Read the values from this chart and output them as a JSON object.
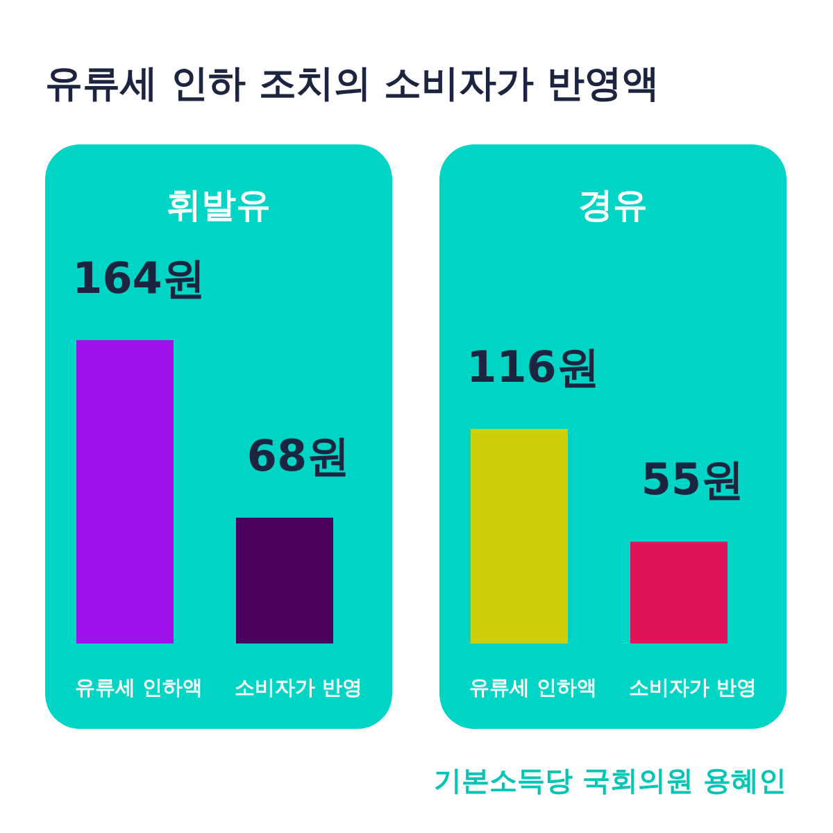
{
  "chart_data": [
    {
      "type": "bar",
      "title": "유류세 인하 조치의 소비자가 반영액",
      "subtitle": "휘발유",
      "categories": [
        "유류세 인하액",
        "소비자가 반영"
      ],
      "values": [
        164,
        68
      ],
      "value_labels": [
        "164원",
        "68원"
      ],
      "colors": [
        "#a010e8",
        "#4a005e"
      ]
    },
    {
      "type": "bar",
      "subtitle": "경유",
      "categories": [
        "유류세 인하액",
        "소비자가 반영"
      ],
      "values": [
        116,
        55
      ],
      "value_labels": [
        "116원",
        "55원"
      ],
      "colors": [
        "#cbcf0c",
        "#e0145a"
      ],
      "annotations": [
        "기본소득당 국회의원 용혜인"
      ]
    }
  ]
}
